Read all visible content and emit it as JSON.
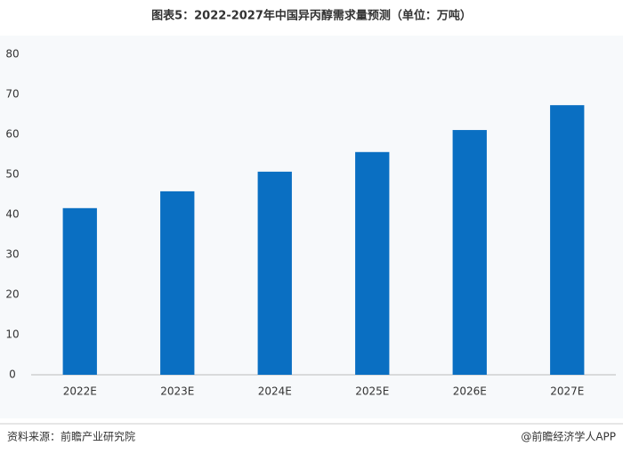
{
  "chart_data": {
    "type": "bar",
    "title": "图表5：2022-2027年中国异丙醇需求量预测（单位：万吨）",
    "categories": [
      "2022E",
      "2023E",
      "2024E",
      "2025E",
      "2026E",
      "2027E"
    ],
    "values": [
      41.6,
      45.8,
      50.7,
      55.6,
      61.1,
      67.3
    ],
    "color": "#0a6fc2",
    "ylim": [
      0,
      80
    ],
    "yticks": [
      0,
      10,
      20,
      30,
      40,
      50,
      60,
      70,
      80
    ],
    "grid": false
  },
  "footer": {
    "source": "资料来源：前瞻产业研究院",
    "brand": "@前瞻经济学人APP"
  }
}
